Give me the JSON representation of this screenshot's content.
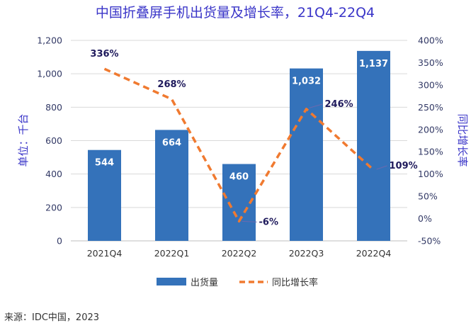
{
  "chart_data": {
    "type": "bar",
    "title": "中国折叠屏手机出货量及增长率，21Q4-22Q4",
    "categories": [
      "2021Q4",
      "2022Q1",
      "2022Q2",
      "2022Q3",
      "2022Q4"
    ],
    "series": [
      {
        "name": "出货量",
        "type": "bar",
        "axis": "left",
        "values": [
          544,
          664,
          460,
          1032,
          1137
        ],
        "labels": [
          "544",
          "664",
          "460",
          "1,032",
          "1,137"
        ],
        "color": "#3472ba"
      },
      {
        "name": "同比增长率",
        "type": "line",
        "axis": "right",
        "style": "dashed",
        "values": [
          336,
          268,
          -6,
          246,
          109
        ],
        "labels": [
          "336%",
          "268%",
          "-6%",
          "246%",
          "109%"
        ],
        "color": "#f07a30"
      }
    ],
    "ylabel": "单位：千台",
    "ylabel_right": "同比增长率",
    "ylim": [
      0,
      1200
    ],
    "yticks": [
      "0",
      "200",
      "400",
      "600",
      "800",
      "1,000",
      "1,200"
    ],
    "ylim_right": [
      -50,
      400
    ],
    "yticks_right": [
      "-50%",
      "0%",
      "50%",
      "100%",
      "150%",
      "200%",
      "250%",
      "300%",
      "350%",
      "400%"
    ],
    "grid": true,
    "legend_position": "bottom",
    "source": "来源：IDC中国，2023"
  }
}
